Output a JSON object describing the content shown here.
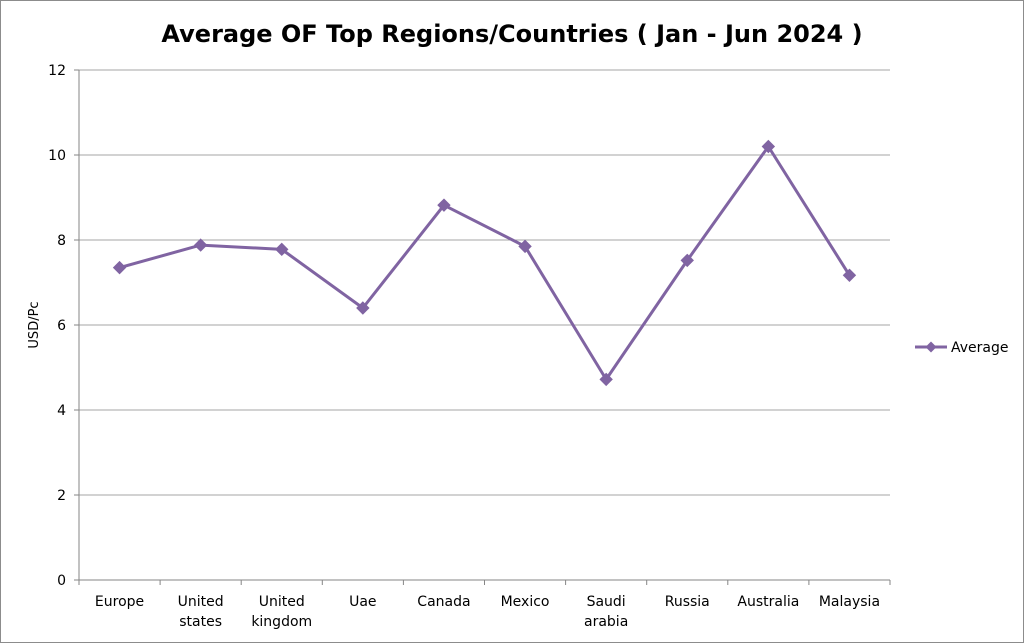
{
  "chart_data": {
    "type": "line",
    "title": "Average OF Top Regions/Countries ( Jan - Jun 2024 )",
    "xlabel": "",
    "ylabel": "USD/Pc",
    "ylim": [
      0,
      12
    ],
    "yticks": [
      0,
      2,
      4,
      6,
      8,
      10,
      12
    ],
    "grid": true,
    "legend_position": "right",
    "categories": [
      [
        "Europe"
      ],
      [
        "United",
        "states"
      ],
      [
        "United",
        "kingdom"
      ],
      [
        "Uae"
      ],
      [
        "Canada"
      ],
      [
        "Mexico"
      ],
      [
        "Saudi",
        "arabia"
      ],
      [
        "Russia"
      ],
      [
        "Australia"
      ],
      [
        "Malaysia"
      ]
    ],
    "series": [
      {
        "name": "Average",
        "color": "#8064a2",
        "marker": "diamond",
        "values": [
          7.35,
          7.88,
          7.78,
          6.4,
          8.82,
          7.85,
          4.72,
          7.52,
          10.2,
          7.17
        ]
      }
    ]
  }
}
